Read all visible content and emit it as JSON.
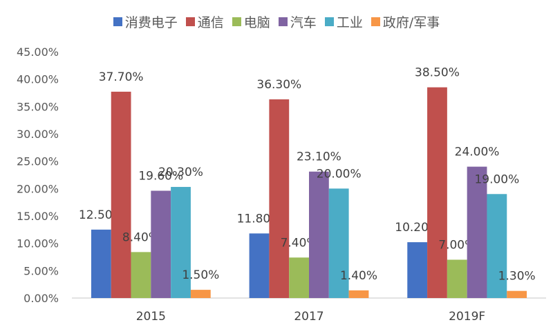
{
  "chart_data": {
    "type": "bar",
    "categories": [
      "2015",
      "2017",
      "2019F"
    ],
    "series": [
      {
        "name": "消费电子",
        "values": [
          12.5,
          11.8,
          10.2
        ],
        "labels": [
          "12.50%",
          "11.80%",
          "10.20%"
        ],
        "color": "#4472C4"
      },
      {
        "name": "通信",
        "values": [
          37.7,
          36.3,
          38.5
        ],
        "labels": [
          "37.70%",
          "36.30%",
          "38.50%"
        ],
        "color": "#C0504D"
      },
      {
        "name": "电脑",
        "values": [
          8.4,
          7.4,
          7.0
        ],
        "labels": [
          "8.40%",
          "7.40%",
          "7.00%"
        ],
        "color": "#9BBB59"
      },
      {
        "name": "汽车",
        "values": [
          19.6,
          23.1,
          24.0
        ],
        "labels": [
          "19.60%",
          "23.10%",
          "24.00%"
        ],
        "color": "#8064A2"
      },
      {
        "name": "工业",
        "values": [
          20.3,
          20.0,
          19.0
        ],
        "labels": [
          "20.30%",
          "20.00%",
          "19.00%"
        ],
        "color": "#4BACC6"
      },
      {
        "name": "政府/军事",
        "values": [
          1.5,
          1.4,
          1.3
        ],
        "labels": [
          "1.50%",
          "1.40%",
          "1.30%"
        ],
        "color": "#F79646"
      }
    ],
    "ylim": [
      0,
      45
    ],
    "yticks": [
      "0.00%",
      "5.00%",
      "10.00%",
      "15.00%",
      "20.00%",
      "25.00%",
      "30.00%",
      "35.00%",
      "40.00%",
      "45.00%"
    ],
    "legend_position": "top",
    "grid": false
  }
}
